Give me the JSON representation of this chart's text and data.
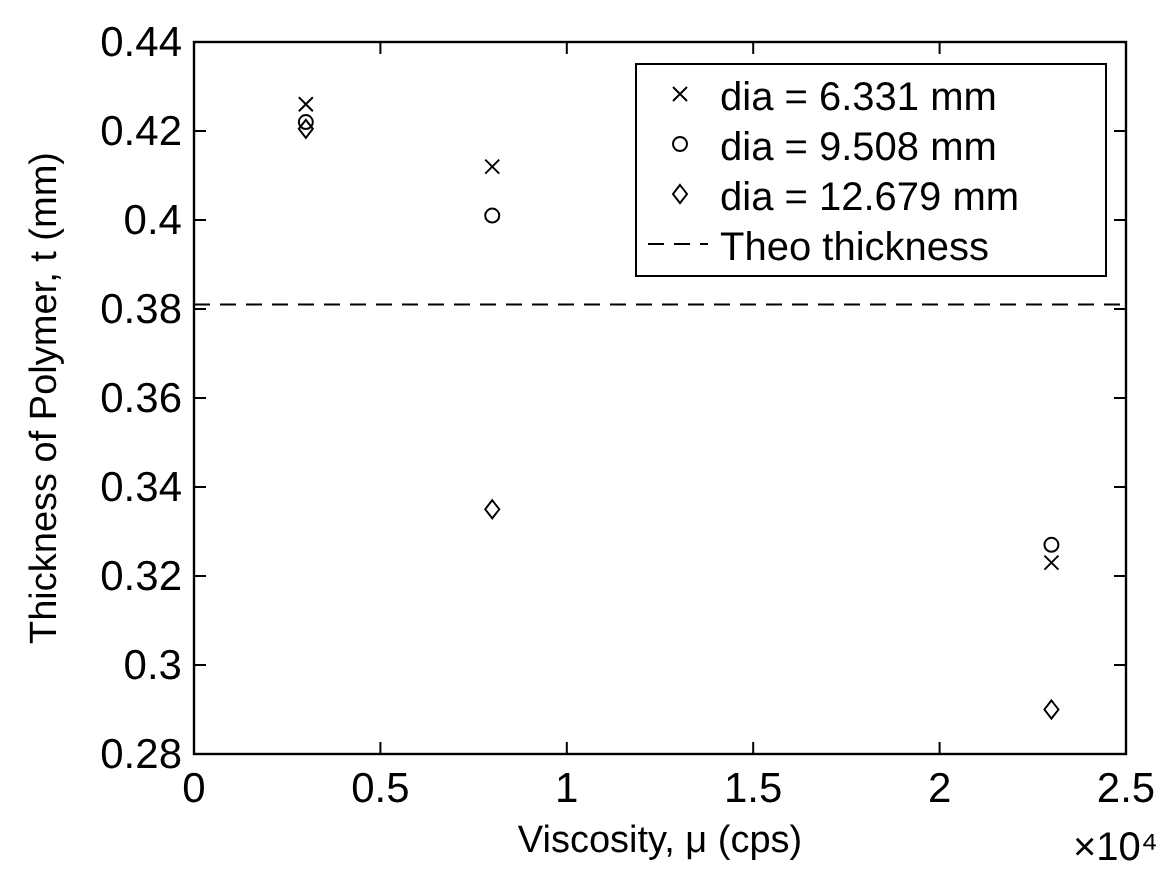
{
  "chart_data": {
    "type": "scatter",
    "xlabel": "Viscosity, μ (cps)",
    "ylabel": "Thickness of Polymer, t (mm)",
    "xlim": [
      0,
      2.5
    ],
    "xticks": [
      0,
      0.5,
      1,
      1.5,
      2,
      2.5
    ],
    "ylim": [
      0.28,
      0.44
    ],
    "yticks": [
      {
        "value": 0.28,
        "label": "0.28"
      },
      {
        "value": 0.3,
        "label": "0.3"
      },
      {
        "value": 0.32,
        "label": "0.32"
      },
      {
        "value": 0.34,
        "label": "0.34"
      },
      {
        "value": 0.36,
        "label": "0.36"
      },
      {
        "value": 0.38,
        "label": "0.38"
      },
      {
        "value": 0.4,
        "label": "0.4"
      },
      {
        "value": 0.42,
        "label": "0.42"
      },
      {
        "value": 0.44,
        "label": "0.44"
      }
    ],
    "x": [
      0.3,
      0.8,
      2.3
    ],
    "series": [
      {
        "name": "dia = 6.331 mm",
        "color": "#000000",
        "marker": "cross",
        "values": [
          0.426,
          0.412,
          0.323
        ]
      },
      {
        "name": "dia = 9.508 mm",
        "color": "#000000",
        "marker": "circle",
        "values": [
          0.422,
          0.401,
          0.327
        ]
      },
      {
        "name": "dia = 12.679 mm",
        "color": "#000000",
        "marker": "diamond",
        "values": [
          0.4205,
          0.335,
          0.29
        ]
      }
    ],
    "ref_lines": [
      {
        "axis": "y",
        "value": 0.381,
        "label": "Theo thickness",
        "color": "#000000",
        "line_style": "dashed"
      }
    ],
    "annotations": [
      "×10⁴"
    ],
    "legend": "top right",
    "grid": false
  }
}
